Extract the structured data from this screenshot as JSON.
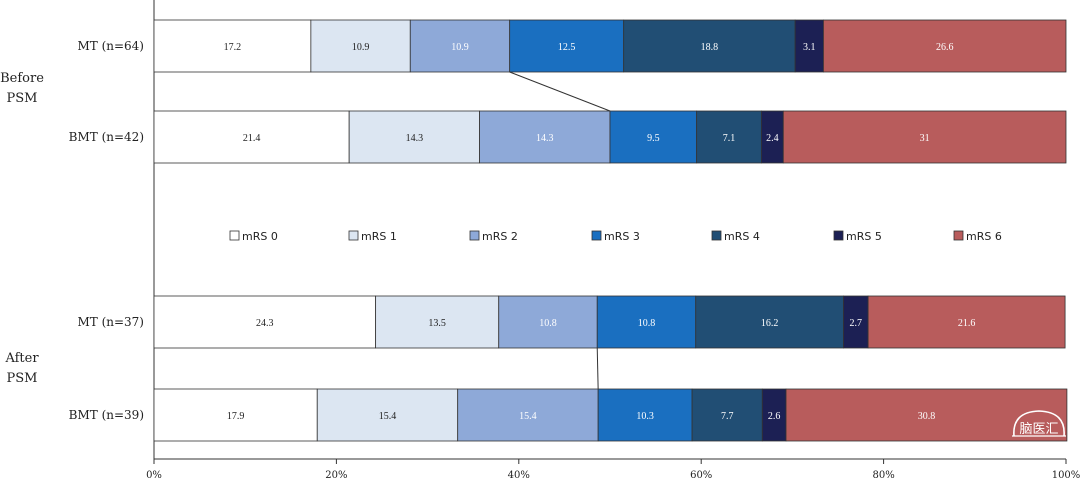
{
  "chart_data": {
    "type": "bar",
    "orientation": "horizontal",
    "stacked": true,
    "xlim": [
      0,
      100
    ],
    "x_ticks": [
      "0%",
      "20%",
      "40%",
      "60%",
      "80%",
      "100%"
    ],
    "categories": [
      "mRS 0",
      "mRS 1",
      "mRS 2",
      "mRS 3",
      "mRS 4",
      "mRS 5",
      "mRS 6"
    ],
    "colors": [
      "#ffffff",
      "#dce6f2",
      "#8ea9d8",
      "#1a6fc0",
      "#214e74",
      "#1c2054",
      "#b85c5c"
    ],
    "label_colors": [
      "#222222",
      "#222222",
      "#ffffff",
      "#ffffff",
      "#ffffff",
      "#ffffff",
      "#ffffff"
    ],
    "groups": [
      {
        "label_lines": [
          "Before",
          "PSM"
        ],
        "rows": [
          {
            "label": "MT (n=64)",
            "values": [
              17.2,
              10.9,
              10.9,
              12.5,
              18.8,
              3.1,
              26.6
            ],
            "value_labels": [
              "17.2",
              "10.9",
              "10.9",
              "12.5",
              "18.8",
              "3.1",
              "26.6"
            ]
          },
          {
            "label": "BMT (n=42)",
            "values": [
              21.4,
              14.3,
              14.3,
              9.5,
              7.1,
              2.4,
              31
            ],
            "value_labels": [
              "21.4",
              "14.3",
              "14.3",
              "9.5",
              "7.1",
              "2.4",
              "31"
            ]
          }
        ]
      },
      {
        "label_lines": [
          "After",
          "PSM"
        ],
        "rows": [
          {
            "label": "MT (n=37)",
            "values": [
              24.3,
              13.5,
              10.8,
              10.8,
              16.2,
              2.7,
              21.6
            ],
            "value_labels": [
              "24.3",
              "13.5",
              "10.8",
              "10.8",
              "16.2",
              "2.7",
              "21.6"
            ]
          },
          {
            "label": "BMT (n=39)",
            "values": [
              17.9,
              15.4,
              15.4,
              10.3,
              7.7,
              2.6,
              30.8
            ],
            "value_labels": [
              "17.9",
              "15.4",
              "15.4",
              "10.3",
              "7.7",
              "2.6",
              "30.8"
            ]
          }
        ]
      }
    ]
  },
  "watermark": {
    "text": "脑医汇"
  }
}
